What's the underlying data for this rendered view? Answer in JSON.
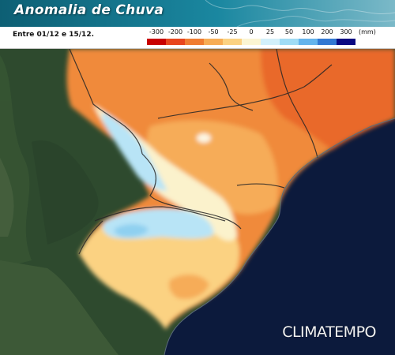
{
  "header": {
    "title": "Anomalia de Chuva",
    "period": "Entre 01/12 e 15/12."
  },
  "legend": {
    "ticks": [
      "-300",
      "-200",
      "-100",
      "-50",
      "-25",
      "0",
      "25",
      "50",
      "100",
      "200",
      "300"
    ],
    "unit": "(mm)",
    "colors": [
      "#c80000",
      "#e8461e",
      "#f07d32",
      "#f7ad55",
      "#fbd282",
      "#fbf5d2",
      "#d2f0fa",
      "#a0dcf5",
      "#64b4ec",
      "#3278d2",
      "#0a0a82"
    ]
  },
  "brand": {
    "name": "CLIMATEMPO"
  },
  "colors": {
    "ocean": "#0c1a3c",
    "land": "#2e4a2e",
    "title_bar": "#13758c"
  }
}
